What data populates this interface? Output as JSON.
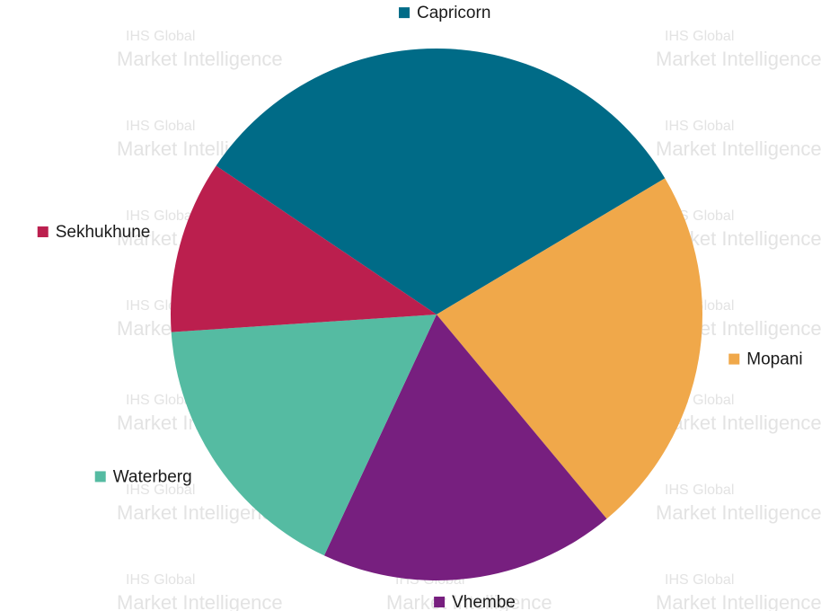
{
  "chart_data": {
    "type": "pie",
    "title": "",
    "slices": [
      {
        "label": "Capricorn",
        "value": 32.0,
        "color": "#006b87"
      },
      {
        "label": "Mopani",
        "value": 22.5,
        "color": "#f0a84a"
      },
      {
        "label": "Vhembe",
        "value": 18.0,
        "color": "#771f7f"
      },
      {
        "label": "Waterberg",
        "value": 17.0,
        "color": "#55bba2"
      },
      {
        "label": "Sekhukhune",
        "value": 10.5,
        "color": "#bb1f4e"
      }
    ],
    "legend": "labels-around-pie"
  },
  "watermark": {
    "line1": "IHS Global",
    "line2": "Market Intelligence"
  }
}
